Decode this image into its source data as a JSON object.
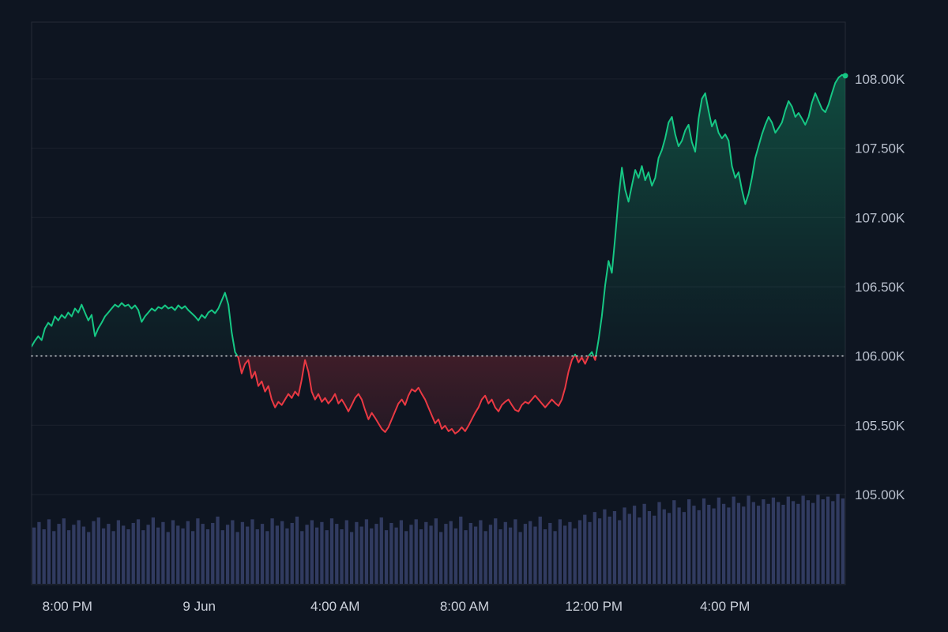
{
  "page": {
    "background": "#0e1521"
  },
  "chart_data": {
    "type": "line",
    "title": "",
    "legend": "none",
    "grid": "horizontal",
    "ylim": [
      104350,
      108410
    ],
    "baseline": {
      "value": 106000,
      "style": "dotted",
      "color": "#eceef2"
    },
    "colors": {
      "grid": "rgba(255,255,255,0.06)",
      "border": "rgba(255,255,255,0.10)"
    },
    "y_axis": {
      "side": "right",
      "color": "#b9c0cd",
      "ticks": [
        {
          "value": 108000,
          "label": "108.00K"
        },
        {
          "value": 107500,
          "label": "107.50K"
        },
        {
          "value": 107000,
          "label": "107.00K"
        },
        {
          "value": 106500,
          "label": "106.50K"
        },
        {
          "value": 106000,
          "label": "106.00K"
        },
        {
          "value": 105500,
          "label": "105.50K"
        },
        {
          "value": 105000,
          "label": "105.00K"
        }
      ]
    },
    "x_axis": {
      "color": "#ccd1db",
      "ticks": [
        {
          "label": "8:00 PM",
          "pos": 0.044
        },
        {
          "label": "9 Jun",
          "pos": 0.206
        },
        {
          "label": "4:00 AM",
          "pos": 0.373
        },
        {
          "label": "8:00 AM",
          "pos": 0.532
        },
        {
          "label": "12:00 PM",
          "pos": 0.691
        },
        {
          "label": "4:00 PM",
          "pos": 0.852
        }
      ]
    },
    "series": {
      "price": {
        "name": "price",
        "type": "baseline-area",
        "color_up": "#16c784",
        "color_down": "#ea3943",
        "values": [
          106069,
          106110,
          106143,
          106114,
          106200,
          106240,
          106217,
          106286,
          106257,
          106297,
          106274,
          106314,
          106286,
          106343,
          106314,
          106371,
          106314,
          106257,
          106297,
          106143,
          106200,
          106240,
          106286,
          106314,
          106343,
          106371,
          106354,
          106383,
          106360,
          106371,
          106343,
          106366,
          106331,
          106246,
          106286,
          106314,
          106343,
          106326,
          106354,
          106343,
          106366,
          106343,
          106354,
          106331,
          106366,
          106343,
          106360,
          106331,
          106309,
          106286,
          106257,
          106297,
          106274,
          106314,
          106331,
          106309,
          106343,
          106400,
          106457,
          106371,
          106171,
          106029,
          105989,
          105874,
          105943,
          105971,
          105840,
          105886,
          105783,
          105817,
          105743,
          105783,
          105686,
          105629,
          105669,
          105646,
          105686,
          105726,
          105697,
          105743,
          105714,
          105829,
          105971,
          105886,
          105743,
          105686,
          105726,
          105669,
          105697,
          105657,
          105686,
          105726,
          105657,
          105686,
          105646,
          105600,
          105646,
          105697,
          105726,
          105686,
          105611,
          105543,
          105589,
          105554,
          105514,
          105474,
          105451,
          105486,
          105543,
          105600,
          105657,
          105686,
          105646,
          105714,
          105760,
          105743,
          105771,
          105726,
          105686,
          105629,
          105571,
          105514,
          105543,
          105474,
          105497,
          105457,
          105474,
          105440,
          105457,
          105486,
          105457,
          105497,
          105543,
          105589,
          105629,
          105686,
          105714,
          105657,
          105686,
          105629,
          105600,
          105646,
          105669,
          105686,
          105646,
          105611,
          105600,
          105646,
          105669,
          105657,
          105686,
          105714,
          105686,
          105657,
          105629,
          105657,
          105686,
          105661,
          105640,
          105686,
          105771,
          105886,
          105971,
          106011,
          105954,
          105989,
          105943,
          106000,
          106029,
          105971,
          106114,
          106286,
          106514,
          106686,
          106600,
          106857,
          107143,
          107360,
          107200,
          107114,
          107229,
          107343,
          107286,
          107371,
          107269,
          107326,
          107229,
          107286,
          107429,
          107486,
          107571,
          107686,
          107726,
          107600,
          107514,
          107554,
          107629,
          107669,
          107543,
          107474,
          107714,
          107857,
          107897,
          107771,
          107657,
          107703,
          107611,
          107571,
          107600,
          107554,
          107371,
          107286,
          107326,
          107200,
          107097,
          107171,
          107286,
          107429,
          107514,
          107600,
          107669,
          107726,
          107686,
          107611,
          107646,
          107686,
          107771,
          107840,
          107800,
          107726,
          107754,
          107714,
          107669,
          107726,
          107829,
          107897,
          107840,
          107783,
          107760,
          107817,
          107897,
          107971,
          108011,
          108029,
          108023
        ]
      },
      "volume": {
        "name": "volume",
        "type": "bar",
        "color": "#3b4570",
        "values_norm": [
          0.62,
          0.68,
          0.6,
          0.71,
          0.58,
          0.66,
          0.72,
          0.59,
          0.65,
          0.7,
          0.63,
          0.57,
          0.69,
          0.73,
          0.61,
          0.66,
          0.58,
          0.7,
          0.64,
          0.6,
          0.67,
          0.71,
          0.59,
          0.65,
          0.73,
          0.62,
          0.68,
          0.57,
          0.7,
          0.64,
          0.61,
          0.69,
          0.58,
          0.72,
          0.66,
          0.6,
          0.67,
          0.74,
          0.59,
          0.65,
          0.7,
          0.57,
          0.68,
          0.63,
          0.71,
          0.6,
          0.66,
          0.58,
          0.72,
          0.64,
          0.69,
          0.61,
          0.67,
          0.74,
          0.58,
          0.65,
          0.7,
          0.62,
          0.68,
          0.59,
          0.72,
          0.66,
          0.6,
          0.7,
          0.57,
          0.68,
          0.63,
          0.71,
          0.61,
          0.66,
          0.73,
          0.59,
          0.67,
          0.62,
          0.7,
          0.58,
          0.65,
          0.71,
          0.6,
          0.68,
          0.64,
          0.72,
          0.57,
          0.66,
          0.69,
          0.61,
          0.74,
          0.59,
          0.67,
          0.63,
          0.7,
          0.58,
          0.65,
          0.72,
          0.6,
          0.68,
          0.62,
          0.71,
          0.57,
          0.66,
          0.69,
          0.63,
          0.74,
          0.6,
          0.67,
          0.58,
          0.71,
          0.64,
          0.68,
          0.61,
          0.7,
          0.76,
          0.68,
          0.79,
          0.72,
          0.82,
          0.74,
          0.8,
          0.7,
          0.84,
          0.77,
          0.86,
          0.73,
          0.88,
          0.8,
          0.75,
          0.9,
          0.82,
          0.78,
          0.92,
          0.84,
          0.79,
          0.93,
          0.86,
          0.81,
          0.94,
          0.87,
          0.83,
          0.95,
          0.88,
          0.84,
          0.96,
          0.89,
          0.85,
          0.97,
          0.9,
          0.86,
          0.93,
          0.88,
          0.95,
          0.9,
          0.87,
          0.96,
          0.91,
          0.88,
          0.97,
          0.92,
          0.89,
          0.98,
          0.93,
          0.96,
          0.91,
          0.99,
          0.94
        ]
      }
    }
  }
}
